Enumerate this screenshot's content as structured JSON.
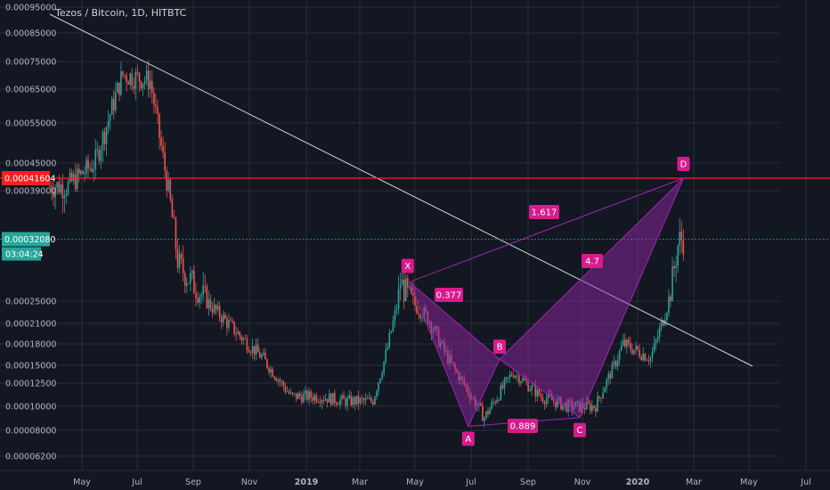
{
  "chart_title": "Tezos / Bitcoin, 1D, HITBTC",
  "colors": {
    "background": "#131722",
    "grid": "#2a2e39",
    "candle_up": "#26a69a",
    "candle_down": "#ef5350",
    "trendline": "#d1d4dc",
    "resistance": "#ff1f1f",
    "current_price_line": "#26a69a",
    "pattern_fill": "#9c27b0",
    "pattern_label": "#d81b8c"
  },
  "y_axis": {
    "ticks": [
      "0.00095000",
      "0.00085000",
      "0.00075000",
      "0.00065000",
      "0.00055000",
      "0.00045000",
      "0.00039000",
      "0.00025000",
      "0.00021000",
      "0.00018000",
      "0.00015000",
      "0.00012500",
      "0.00010000",
      "0.00008000",
      "0.00006200"
    ],
    "price_badge": "0.00041604",
    "current_badge": "0.00032080",
    "countdown_badge": "03:04:24"
  },
  "x_axis": {
    "ticks": [
      {
        "label": "May",
        "bold": false
      },
      {
        "label": "Jul",
        "bold": false
      },
      {
        "label": "Sep",
        "bold": false
      },
      {
        "label": "Nov",
        "bold": false
      },
      {
        "label": "2019",
        "bold": true
      },
      {
        "label": "Mar",
        "bold": false
      },
      {
        "label": "May",
        "bold": false
      },
      {
        "label": "Jul",
        "bold": false
      },
      {
        "label": "Sep",
        "bold": false
      },
      {
        "label": "Nov",
        "bold": false
      },
      {
        "label": "2020",
        "bold": true
      },
      {
        "label": "Mar",
        "bold": false
      },
      {
        "label": "May",
        "bold": false
      },
      {
        "label": "Jul",
        "bold": false
      }
    ]
  },
  "pattern": {
    "points": {
      "X": "X",
      "A": "A",
      "B": "B",
      "C": "C",
      "D": "D"
    },
    "ratios": {
      "xa_b": "0.377",
      "ab_c": "0.889",
      "bc_d": "4.7",
      "xa_d": "1.617"
    }
  },
  "chart_data": {
    "type": "line",
    "title": "Tezos / Bitcoin, 1D, HITBTC",
    "scale": "log",
    "ylim": [
      5.6e-05,
      0.00098
    ],
    "x": [
      "2018-04",
      "2018-05",
      "2018-06",
      "2018-07",
      "2018-08",
      "2018-09",
      "2018-10",
      "2018-11",
      "2018-12",
      "2019-01",
      "2019-02",
      "2019-03",
      "2019-04",
      "2019-05",
      "2019-06",
      "2019-07",
      "2019-08",
      "2019-09",
      "2019-10",
      "2019-11",
      "2019-12",
      "2020-01",
      "2020-02"
    ],
    "series": [
      {
        "name": "",
        "values": [
          0.0004,
          0.00045,
          0.0007,
          0.00068,
          0.00029,
          0.00025,
          0.0002,
          0.00016,
          0.00011,
          0.00011,
          0.000105,
          0.000105,
          0.00027,
          0.00022,
          0.00014,
          9e-05,
          0.00014,
          0.00011,
          0.0001,
          0.0001,
          0.00018,
          0.00016,
          0.00032
        ]
      }
    ],
    "harmonic_points": {
      "X": 0.00027,
      "A": 8.3e-05,
      "B": 0.000158,
      "C": 9e-05,
      "D": 0.00041604
    },
    "resistance_level": 0.00041604,
    "current_price": 0.0003208
  }
}
